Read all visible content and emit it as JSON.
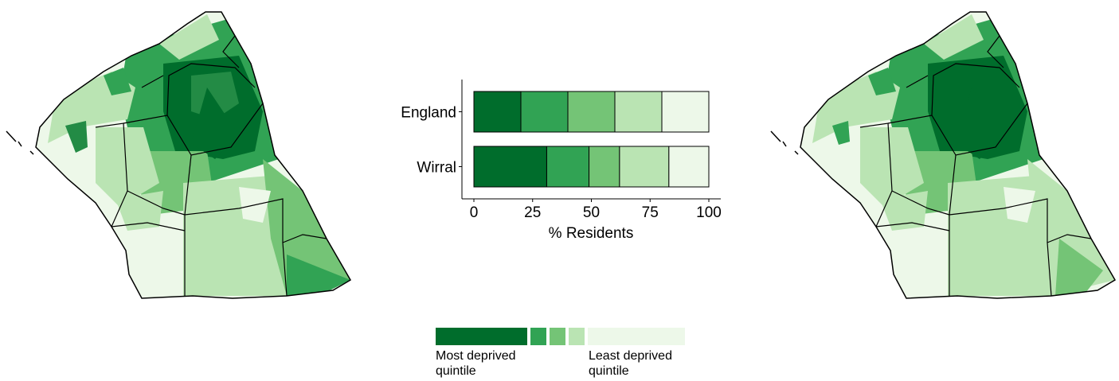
{
  "chart_data": {
    "type": "bar",
    "stacked": true,
    "orientation": "horizontal",
    "categories": [
      "England",
      "Wirral"
    ],
    "series": [
      {
        "values": [
          20,
          31
        ],
        "color": "#006d2c"
      },
      {
        "values": [
          20,
          18
        ],
        "color": "#31a354"
      },
      {
        "values": [
          20,
          13
        ],
        "color": "#74c476"
      },
      {
        "values": [
          20,
          21
        ],
        "color": "#bae4b3"
      },
      {
        "values": [
          20,
          17
        ],
        "color": "#edf8e9"
      }
    ],
    "xlabel": "% Residents",
    "ylabel": "",
    "xlim": [
      0,
      100
    ],
    "xticks": [
      "0",
      "25",
      "50",
      "75",
      "100"
    ],
    "grid": false
  },
  "legend": {
    "colors": [
      "#006d2c",
      "#31a354",
      "#74c476",
      "#bae4b3",
      "#edf8e9"
    ],
    "left_label": "Most deprived quintile",
    "right_label": "Least deprived quintile"
  },
  "maps": {
    "palette": [
      "#006d2c",
      "#31a354",
      "#74c476",
      "#bae4b3",
      "#edf8e9"
    ]
  }
}
